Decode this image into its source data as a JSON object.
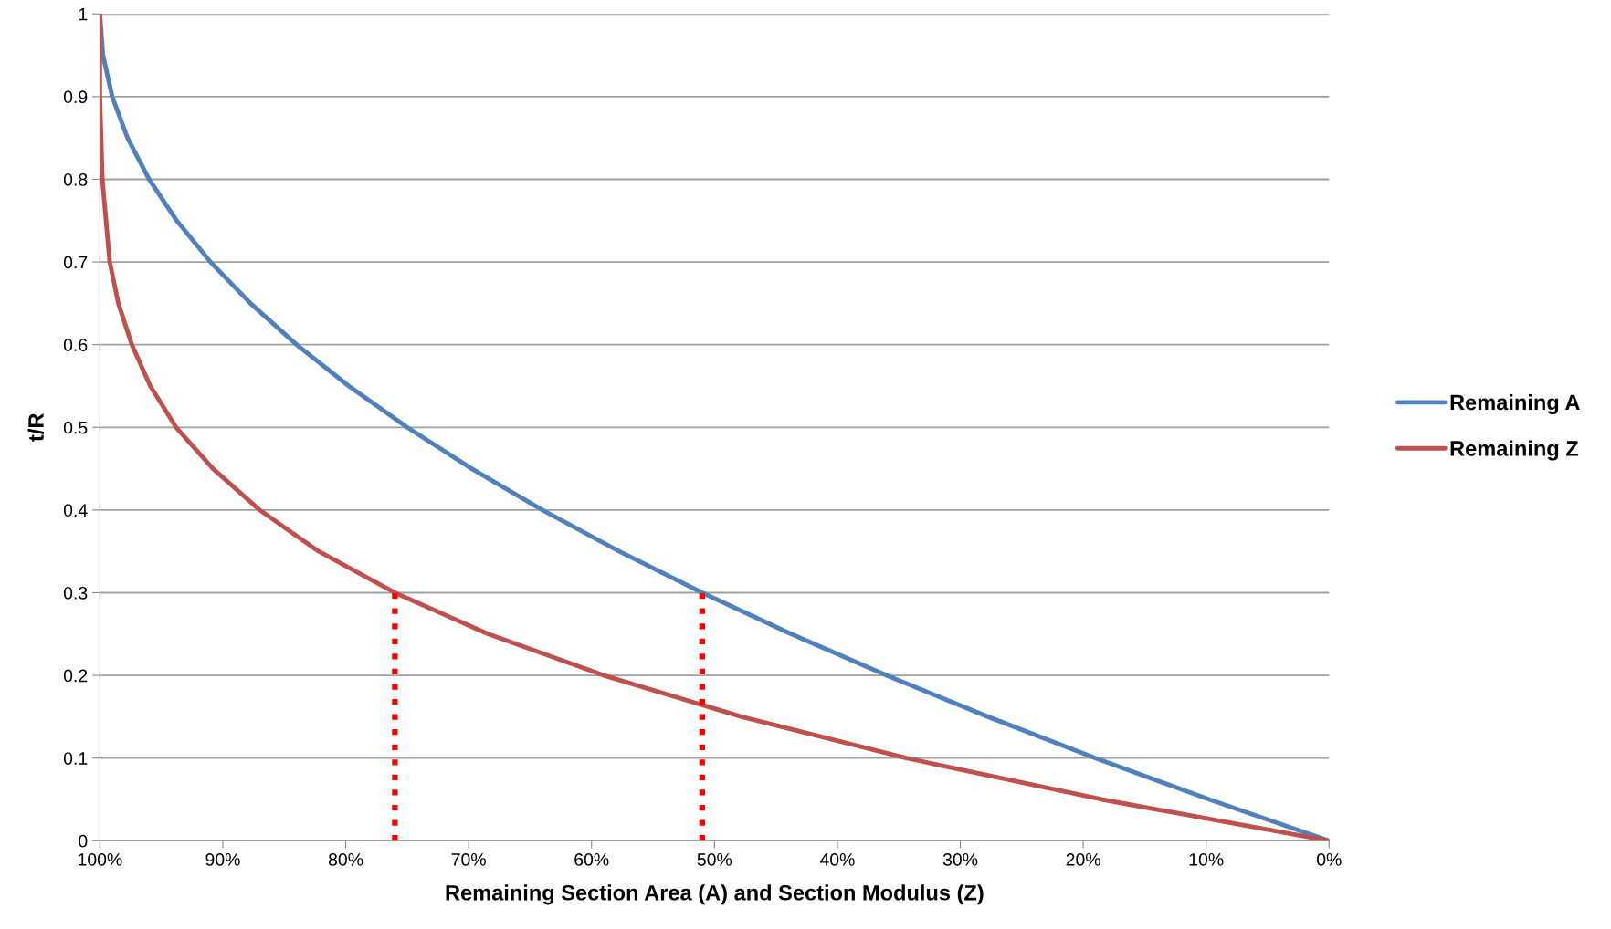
{
  "chart_data": {
    "type": "line",
    "xlabel": "Remaining Section Area (A) and Section Modulus (Z)",
    "ylabel": "t/R",
    "xlim": [
      100,
      0
    ],
    "ylim": [
      0,
      1
    ],
    "xticks": [
      {
        "value": 100,
        "label": "100%"
      },
      {
        "value": 90,
        "label": "90%"
      },
      {
        "value": 80,
        "label": "80%"
      },
      {
        "value": 70,
        "label": "70%"
      },
      {
        "value": 60,
        "label": "60%"
      },
      {
        "value": 50,
        "label": "50%"
      },
      {
        "value": 40,
        "label": "40%"
      },
      {
        "value": 30,
        "label": "30%"
      },
      {
        "value": 20,
        "label": "20%"
      },
      {
        "value": 10,
        "label": "10%"
      },
      {
        "value": 0,
        "label": "0%"
      }
    ],
    "yticks": [
      0,
      0.1,
      0.2,
      0.3,
      0.4,
      0.5,
      0.6,
      0.7,
      0.8,
      0.9,
      1
    ],
    "grid": "y",
    "legend": "right",
    "marker": "none",
    "series": [
      {
        "name": "Remaining A",
        "color": "#4f81bd",
        "line_style": "solid",
        "x": [
          0,
          9.75,
          19,
          27.75,
          36,
          43.75,
          51,
          57.75,
          64,
          69.75,
          75,
          79.75,
          84,
          87.75,
          91,
          93.75,
          96,
          97.75,
          99,
          99.75,
          100
        ],
        "values": [
          0,
          0.05,
          0.1,
          0.15,
          0.2,
          0.25,
          0.3,
          0.35,
          0.4,
          0.45,
          0.5,
          0.55,
          0.6,
          0.65,
          0.7,
          0.75,
          0.8,
          0.85,
          0.9,
          0.95,
          1
        ]
      },
      {
        "name": "Remaining Z",
        "color": "#c0504d",
        "line_style": "solid",
        "x": [
          0,
          18.5,
          34.4,
          47.8,
          59,
          68.4,
          76,
          82.2,
          87,
          90.8,
          93.8,
          95.9,
          97.4,
          98.5,
          99.2,
          99.8,
          100,
          100
        ],
        "values": [
          0,
          0.05,
          0.1,
          0.15,
          0.2,
          0.25,
          0.3,
          0.35,
          0.4,
          0.45,
          0.5,
          0.55,
          0.6,
          0.65,
          0.7,
          0.8,
          0.9,
          1
        ]
      },
      {
        "color": "#ff0000",
        "line_style": "dotted",
        "x": [
          76,
          76
        ],
        "values": [
          0,
          0.3
        ]
      },
      {
        "color": "#ff0000",
        "line_style": "dotted",
        "x": [
          51,
          51
        ],
        "values": [
          0,
          0.3
        ]
      }
    ]
  }
}
